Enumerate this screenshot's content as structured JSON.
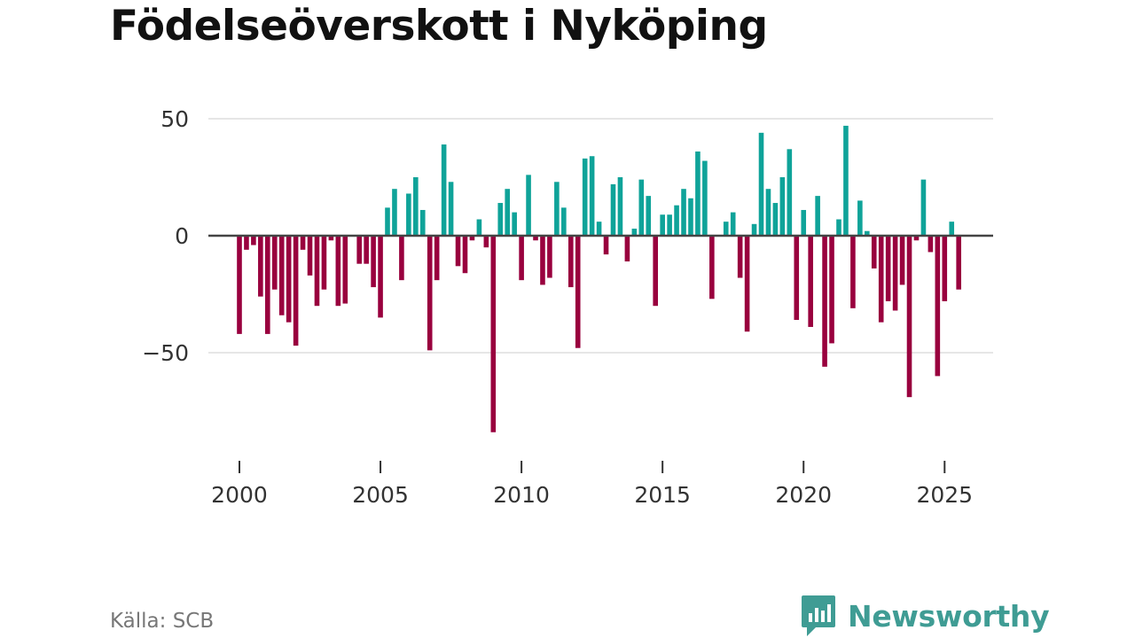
{
  "title": "Födelseöverskott i Nyköping",
  "source": "Källa: SCB",
  "brand": {
    "name": "Newsworthy",
    "icon": "chart-bubble-icon"
  },
  "colors": {
    "positive": "#0fa399",
    "negative": "#99003e",
    "zero_line": "#444444",
    "grid": "#dddddd",
    "brand": "#3f9c94"
  },
  "chart_data": {
    "type": "bar",
    "title": "Födelseöverskott i Nyköping",
    "frequency": "quarterly",
    "x_start": 2000,
    "xlim": [
      1998.9,
      2026.72
    ],
    "ylim": [
      -90,
      60
    ],
    "xticks": [
      2000,
      2005,
      2010,
      2015,
      2020,
      2025
    ],
    "yticks": [
      50,
      0,
      -50
    ],
    "ytick_labels": [
      "50",
      "0",
      "−50"
    ],
    "xlabel": "",
    "ylabel": "",
    "grid": true,
    "legend": "none",
    "values": [
      -42,
      -6,
      -4,
      -26,
      -42,
      -23,
      -34,
      -37,
      -47,
      -6,
      -17,
      -30,
      -23,
      -2,
      -30,
      -29,
      0,
      -12,
      -12,
      -22,
      -35,
      12,
      20,
      -19,
      18,
      25,
      11,
      -49,
      -19,
      39,
      23,
      -13,
      -16,
      -2,
      7,
      -5,
      -84,
      14,
      20,
      10,
      -19,
      26,
      -2,
      -21,
      -18,
      23,
      12,
      -22,
      -48,
      33,
      34,
      6,
      -8,
      22,
      25,
      -11,
      3,
      24,
      17,
      -30,
      9,
      9,
      13,
      20,
      16,
      36,
      32,
      -27,
      0,
      6,
      10,
      -18,
      -41,
      5,
      44,
      20,
      14,
      25,
      37,
      -36,
      11,
      -39,
      17,
      -56,
      -46,
      7,
      47,
      -31,
      15,
      2,
      -14,
      -37,
      -28,
      -32,
      -21,
      -69,
      -2,
      24,
      -7,
      -60,
      -28,
      6,
      -23
    ]
  }
}
